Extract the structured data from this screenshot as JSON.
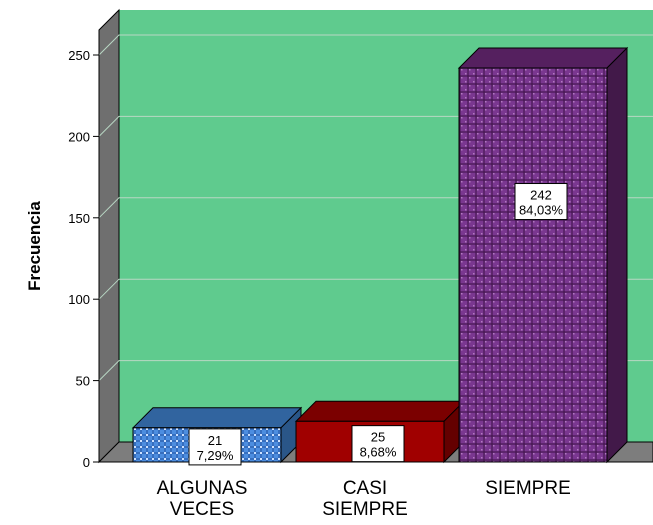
{
  "chart_data": {
    "type": "bar",
    "title": "",
    "xlabel": "",
    "ylabel": "Frecuencia",
    "ylim": [
      0,
      250
    ],
    "yticks": [
      0,
      50,
      100,
      150,
      200,
      250
    ],
    "grid": true,
    "legend": "none",
    "categories": [
      "ALGUNAS VECES",
      "CASI SIEMPRE",
      "SIEMPRE"
    ],
    "category_lines": [
      [
        "ALGUNAS",
        "VECES"
      ],
      [
        "CASI",
        "SIEMPRE"
      ],
      [
        "SIEMPRE"
      ]
    ],
    "values": [
      21,
      25,
      242
    ],
    "percent_labels": [
      "7,29%",
      "8,68%",
      "84,03%"
    ],
    "colors": {
      "plot_background": "#5fcb8e",
      "side_wall": "#6f6f6f",
      "floor": "#7d7d7d",
      "gridline": "#b9d7c4",
      "bars": [
        "#3f7fcf",
        "#a00000",
        "#6b2c7d"
      ],
      "bar_tops": [
        "#31649f",
        "#7b0000",
        "#55205f"
      ],
      "bar_sides": [
        "#2a5688",
        "#640000",
        "#421949"
      ]
    }
  }
}
